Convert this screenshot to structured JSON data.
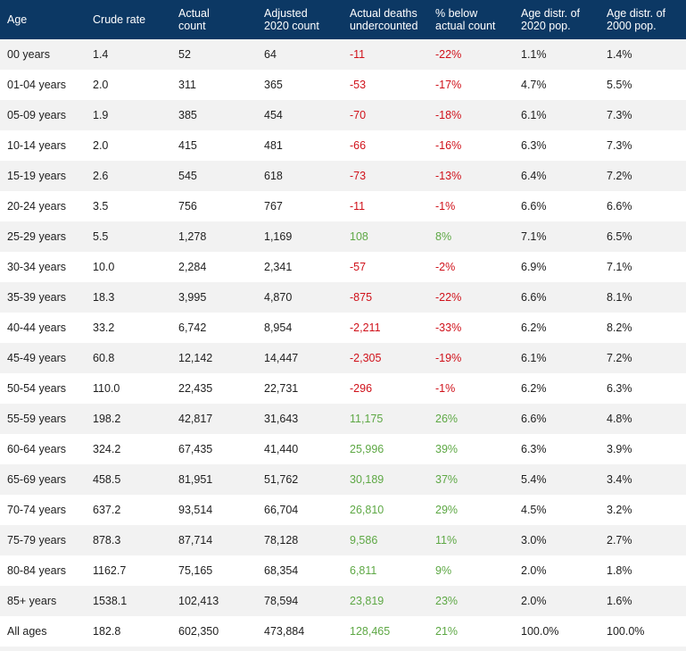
{
  "table": {
    "headers": [
      [
        "Age",
        ""
      ],
      [
        "Crude rate",
        ""
      ],
      [
        "Actual",
        "count"
      ],
      [
        "Adjusted",
        "2020 count"
      ],
      [
        "Actual deaths",
        "undercounted"
      ],
      [
        "% below",
        "actual count"
      ],
      [
        "Age distr. of",
        "2020 pop."
      ],
      [
        "Age distr. of",
        "2000 pop."
      ]
    ],
    "colors": {
      "header_bg": "#0c3864",
      "negative": "#d0121b",
      "positive": "#5ea845",
      "stripe": "#f2f2f2"
    },
    "rows": [
      {
        "age": "00 years",
        "crude_rate": "1.4",
        "actual_count": "52",
        "adjusted_2020_count": "64",
        "undercounted": "-11",
        "pct_below": "-22%",
        "distr_2020": "1.1%",
        "distr_2000": "1.4%",
        "sign": "neg"
      },
      {
        "age": "01-04 years",
        "crude_rate": "2.0",
        "actual_count": "311",
        "adjusted_2020_count": "365",
        "undercounted": "-53",
        "pct_below": "-17%",
        "distr_2020": "4.7%",
        "distr_2000": "5.5%",
        "sign": "neg"
      },
      {
        "age": "05-09 years",
        "crude_rate": "1.9",
        "actual_count": "385",
        "adjusted_2020_count": "454",
        "undercounted": "-70",
        "pct_below": "-18%",
        "distr_2020": "6.1%",
        "distr_2000": "7.3%",
        "sign": "neg"
      },
      {
        "age": "10-14 years",
        "crude_rate": "2.0",
        "actual_count": "415",
        "adjusted_2020_count": "481",
        "undercounted": "-66",
        "pct_below": "-16%",
        "distr_2020": "6.3%",
        "distr_2000": "7.3%",
        "sign": "neg"
      },
      {
        "age": "15-19 years",
        "crude_rate": "2.6",
        "actual_count": "545",
        "adjusted_2020_count": "618",
        "undercounted": "-73",
        "pct_below": "-13%",
        "distr_2020": "6.4%",
        "distr_2000": "7.2%",
        "sign": "neg"
      },
      {
        "age": "20-24 years",
        "crude_rate": "3.5",
        "actual_count": "756",
        "adjusted_2020_count": "767",
        "undercounted": "-11",
        "pct_below": "-1%",
        "distr_2020": "6.6%",
        "distr_2000": "6.6%",
        "sign": "neg"
      },
      {
        "age": "25-29 years",
        "crude_rate": "5.5",
        "actual_count": "1,278",
        "adjusted_2020_count": "1,169",
        "undercounted": "108",
        "pct_below": "8%",
        "distr_2020": "7.1%",
        "distr_2000": "6.5%",
        "sign": "pos"
      },
      {
        "age": "30-34 years",
        "crude_rate": "10.0",
        "actual_count": "2,284",
        "adjusted_2020_count": "2,341",
        "undercounted": "-57",
        "pct_below": "-2%",
        "distr_2020": "6.9%",
        "distr_2000": "7.1%",
        "sign": "neg"
      },
      {
        "age": "35-39 years",
        "crude_rate": "18.3",
        "actual_count": "3,995",
        "adjusted_2020_count": "4,870",
        "undercounted": "-875",
        "pct_below": "-22%",
        "distr_2020": "6.6%",
        "distr_2000": "8.1%",
        "sign": "neg"
      },
      {
        "age": "40-44 years",
        "crude_rate": "33.2",
        "actual_count": "6,742",
        "adjusted_2020_count": "8,954",
        "undercounted": "-2,211",
        "pct_below": "-33%",
        "distr_2020": "6.2%",
        "distr_2000": "8.2%",
        "sign": "neg"
      },
      {
        "age": "45-49 years",
        "crude_rate": "60.8",
        "actual_count": "12,142",
        "adjusted_2020_count": "14,447",
        "undercounted": "-2,305",
        "pct_below": "-19%",
        "distr_2020": "6.1%",
        "distr_2000": "7.2%",
        "sign": "neg"
      },
      {
        "age": "50-54 years",
        "crude_rate": "110.0",
        "actual_count": "22,435",
        "adjusted_2020_count": "22,731",
        "undercounted": "-296",
        "pct_below": "-1%",
        "distr_2020": "6.2%",
        "distr_2000": "6.3%",
        "sign": "neg"
      },
      {
        "age": "55-59 years",
        "crude_rate": "198.2",
        "actual_count": "42,817",
        "adjusted_2020_count": "31,643",
        "undercounted": "11,175",
        "pct_below": "26%",
        "distr_2020": "6.6%",
        "distr_2000": "4.8%",
        "sign": "pos"
      },
      {
        "age": "60-64 years",
        "crude_rate": "324.2",
        "actual_count": "67,435",
        "adjusted_2020_count": "41,440",
        "undercounted": "25,996",
        "pct_below": "39%",
        "distr_2020": "6.3%",
        "distr_2000": "3.9%",
        "sign": "pos"
      },
      {
        "age": "65-69 years",
        "crude_rate": "458.5",
        "actual_count": "81,951",
        "adjusted_2020_count": "51,762",
        "undercounted": "30,189",
        "pct_below": "37%",
        "distr_2020": "5.4%",
        "distr_2000": "3.4%",
        "sign": "pos"
      },
      {
        "age": "70-74 years",
        "crude_rate": "637.2",
        "actual_count": "93,514",
        "adjusted_2020_count": "66,704",
        "undercounted": "26,810",
        "pct_below": "29%",
        "distr_2020": "4.5%",
        "distr_2000": "3.2%",
        "sign": "pos"
      },
      {
        "age": "75-79 years",
        "crude_rate": "878.3",
        "actual_count": "87,714",
        "adjusted_2020_count": "78,128",
        "undercounted": "9,586",
        "pct_below": "11%",
        "distr_2020": "3.0%",
        "distr_2000": "2.7%",
        "sign": "pos"
      },
      {
        "age": "80-84 years",
        "crude_rate": "1162.7",
        "actual_count": "75,165",
        "adjusted_2020_count": "68,354",
        "undercounted": "6,811",
        "pct_below": "9%",
        "distr_2020": "2.0%",
        "distr_2000": "1.8%",
        "sign": "pos"
      },
      {
        "age": "85+ years",
        "crude_rate": "1538.1",
        "actual_count": "102,413",
        "adjusted_2020_count": "78,594",
        "undercounted": "23,819",
        "pct_below": "23%",
        "distr_2020": "2.0%",
        "distr_2000": "1.6%",
        "sign": "pos"
      },
      {
        "age": "All ages",
        "crude_rate": "182.8",
        "actual_count": "602,350",
        "adjusted_2020_count": "473,884",
        "undercounted": "128,465",
        "pct_below": "21%",
        "distr_2020": "100.0%",
        "distr_2000": "100.0%",
        "sign": "pos"
      }
    ]
  }
}
